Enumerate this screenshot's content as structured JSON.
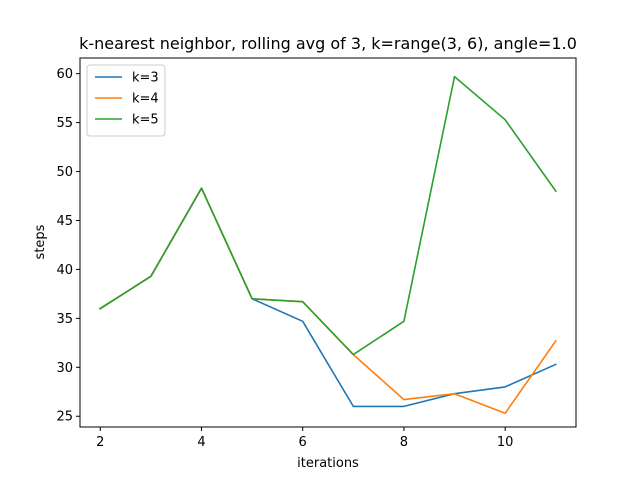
{
  "chart_data": {
    "type": "line",
    "title": "k-nearest neighbor, rolling avg of 3, k=range(3, 6), angle=1.0",
    "xlabel": "iterations",
    "ylabel": "steps",
    "xlim": [
      1.6,
      11.4
    ],
    "ylim": [
      23.9,
      61.6
    ],
    "xticks": [
      2,
      4,
      6,
      8,
      10
    ],
    "yticks": [
      25,
      30,
      35,
      40,
      45,
      50,
      55,
      60
    ],
    "x": [
      2,
      3,
      4,
      5,
      6,
      7,
      8,
      9,
      10,
      11
    ],
    "series": [
      {
        "name": "k=3",
        "color": "#1f77b4",
        "values": [
          36.0,
          39.3,
          48.3,
          37.0,
          34.7,
          26.0,
          26.0,
          27.3,
          28.0,
          30.3
        ]
      },
      {
        "name": "k=4",
        "color": "#ff7f0e",
        "values": [
          36.0,
          39.3,
          48.3,
          37.0,
          36.7,
          31.3,
          26.7,
          27.3,
          25.3,
          32.7
        ]
      },
      {
        "name": "k=5",
        "color": "#2ca02c",
        "values": [
          36.0,
          39.3,
          48.3,
          37.0,
          36.7,
          31.3,
          34.7,
          59.7,
          55.3,
          48.0
        ]
      }
    ],
    "legend_position": "top-left",
    "grid": false
  }
}
